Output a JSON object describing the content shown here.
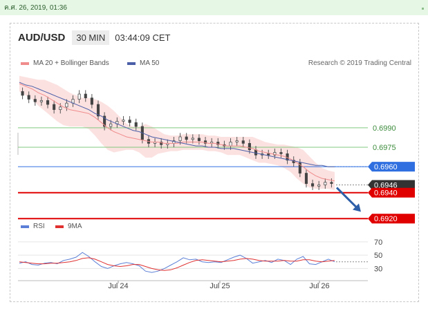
{
  "topbar": {
    "timestamp": "ค.ศ. 26, 2019, 01:36"
  },
  "header": {
    "pair": "AUD/USD",
    "timeframe": "30 MIN",
    "time": "03:44:09 CET"
  },
  "legend": {
    "ma20_label": "MA 20 + Bollinger Bands",
    "ma50_label": "MA 50",
    "credit": "Research © 2019 Trading Central",
    "rsi_label": "RSI",
    "rsi_ma_label": "9MA"
  },
  "colors": {
    "ma20": "#f08c8c",
    "ma50": "#4a5fa8",
    "band": "#fbd9d9",
    "green_level": "#7fc97f",
    "blue_level": "#2f6fe0",
    "red_level": "#e00000",
    "current": "#333333",
    "arrow": "#2d5ea8",
    "rsi": "#5b7fd6",
    "rsi_ma": "#e03030"
  },
  "chart_data": [
    {
      "type": "candlestick",
      "title": "AUD/USD",
      "timeframe": "30 MIN",
      "x_ticks": [
        "Jul 24",
        "Jul 25",
        "Jul 26"
      ],
      "ylim": [
        0.6918,
        0.7032
      ],
      "close_path": [
        0.7018,
        0.7015,
        0.7012,
        0.701,
        0.7011,
        0.7008,
        0.7004,
        0.7006,
        0.7009,
        0.7012,
        0.7016,
        0.7013,
        0.7008,
        0.6999,
        0.6991,
        0.6993,
        0.6995,
        0.6996,
        0.6994,
        0.6991,
        0.6981,
        0.6978,
        0.6979,
        0.6977,
        0.6978,
        0.698,
        0.6983,
        0.6981,
        0.6982,
        0.698,
        0.6978,
        0.6979,
        0.6977,
        0.6976,
        0.6979,
        0.698,
        0.6978,
        0.6973,
        0.6969,
        0.697,
        0.6969,
        0.6971,
        0.697,
        0.6965,
        0.6963,
        0.6955,
        0.6947,
        0.6945,
        0.6946,
        0.6948,
        0.6947
      ],
      "ma20_path": [
        0.7024,
        0.7022,
        0.702,
        0.7017,
        0.7015,
        0.7012,
        0.7009,
        0.7006,
        0.7004,
        0.7003,
        0.7002,
        0.7001,
        0.6998,
        0.6994,
        0.699,
        0.6987,
        0.6985,
        0.6983,
        0.6982,
        0.6981,
        0.698,
        0.6979,
        0.6979,
        0.6978,
        0.6978,
        0.6978,
        0.6979,
        0.6979,
        0.6979,
        0.6979,
        0.6978,
        0.6978,
        0.6977,
        0.6976,
        0.6976,
        0.6976,
        0.6975,
        0.6974,
        0.6972,
        0.6971,
        0.697,
        0.6969,
        0.6968,
        0.6966,
        0.6963,
        0.696,
        0.6956,
        0.6953,
        0.6951,
        0.695,
        0.6949
      ],
      "ma50_path": [
        0.7025,
        0.7023,
        0.7022,
        0.702,
        0.7018,
        0.7016,
        0.7014,
        0.7012,
        0.701,
        0.7008,
        0.7006,
        0.7004,
        0.7001,
        0.6999,
        0.6996,
        0.6994,
        0.6992,
        0.699,
        0.6988,
        0.6987,
        0.6985,
        0.6983,
        0.6982,
        0.6981,
        0.698,
        0.6979,
        0.6978,
        0.6977,
        0.6976,
        0.6976,
        0.6975,
        0.6975,
        0.6974,
        0.6974,
        0.6974,
        0.6973,
        0.6972,
        0.6971,
        0.697,
        0.6969,
        0.6968,
        0.6967,
        0.6966,
        0.6965,
        0.6964,
        0.6963,
        0.6962,
        0.6961,
        0.6961,
        0.696,
        0.696
      ],
      "band_half_width": [
        0.0006,
        0.0007,
        0.0008,
        0.001,
        0.0012,
        0.0013,
        0.0014,
        0.0014,
        0.0013,
        0.0012,
        0.0011,
        0.0012,
        0.0014,
        0.0016,
        0.0017,
        0.0016,
        0.0013,
        0.001,
        0.0009,
        0.001,
        0.0013,
        0.0012,
        0.0009,
        0.0007,
        0.0006,
        0.0006,
        0.0006,
        0.0006,
        0.0006,
        0.0006,
        0.0006,
        0.0006,
        0.0006,
        0.0007,
        0.0007,
        0.0007,
        0.0008,
        0.0009,
        0.0009,
        0.0008,
        0.0008,
        0.0008,
        0.0009,
        0.001,
        0.0012,
        0.0013,
        0.0012,
        0.001,
        0.0008,
        0.0007,
        0.0007
      ],
      "levels": [
        {
          "value": 0.699,
          "label": "0.6990",
          "kind": "green"
        },
        {
          "value": 0.6975,
          "label": "0.6975",
          "kind": "green"
        },
        {
          "value": 0.696,
          "label": "0.6960",
          "kind": "blue"
        },
        {
          "value": 0.6946,
          "label": "0.6946",
          "kind": "current"
        },
        {
          "value": 0.694,
          "label": "0.6940",
          "kind": "red"
        },
        {
          "value": 0.692,
          "label": "0.6920",
          "kind": "red"
        }
      ],
      "target_arrow": {
        "from": 0.6946,
        "to": 0.6921
      }
    },
    {
      "type": "line",
      "title": "RSI",
      "y_ticks": [
        70,
        50,
        30
      ],
      "ylim": [
        20,
        75
      ],
      "series": [
        {
          "name": "RSI",
          "values": [
            38,
            40,
            36,
            35,
            38,
            39,
            37,
            42,
            44,
            47,
            54,
            48,
            40,
            33,
            30,
            34,
            37,
            39,
            37,
            34,
            26,
            24,
            26,
            30,
            35,
            40,
            46,
            43,
            44,
            40,
            39,
            40,
            39,
            43,
            47,
            50,
            45,
            38,
            40,
            42,
            39,
            44,
            42,
            36,
            44,
            48,
            37,
            36,
            40,
            44,
            40
          ]
        },
        {
          "name": "9MA",
          "values": [
            40,
            39,
            38,
            37,
            37,
            38,
            38,
            39,
            40,
            42,
            45,
            46,
            44,
            40,
            36,
            34,
            33,
            34,
            36,
            36,
            33,
            30,
            28,
            27,
            28,
            31,
            35,
            39,
            42,
            43,
            42,
            41,
            40,
            41,
            42,
            44,
            45,
            44,
            42,
            41,
            41,
            41,
            42,
            41,
            41,
            43,
            43,
            41,
            40,
            41,
            42
          ]
        }
      ]
    }
  ]
}
